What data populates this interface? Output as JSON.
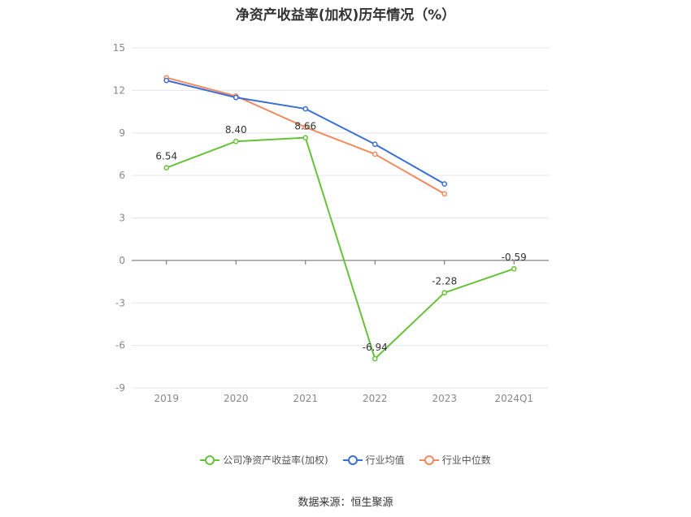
{
  "title": "净资产收益率(加权)历年情况（%）",
  "source": "数据来源：恒生聚源",
  "chart_data": {
    "type": "line",
    "title": "净资产收益率(加权)历年情况（%）",
    "categories": [
      "2019",
      "2020",
      "2021",
      "2022",
      "2023",
      "2024Q1"
    ],
    "ylim": [
      -9,
      15
    ],
    "yticks": [
      15,
      12,
      9,
      6,
      3,
      0,
      -3,
      -6,
      -9
    ],
    "grid": true,
    "legend_position": "bottom",
    "series": [
      {
        "name": "公司净资产收益率(加权)",
        "color": "#66c23a",
        "values": [
          6.54,
          8.4,
          8.66,
          -6.94,
          -2.28,
          -0.59
        ],
        "labels": [
          "6.54",
          "8.40",
          "8.66",
          "-6.94",
          "-2.28",
          "-0.59"
        ]
      },
      {
        "name": "行业均值",
        "color": "#3b6fd6",
        "values": [
          12.7,
          11.5,
          10.7,
          8.2,
          5.4,
          null
        ]
      },
      {
        "name": "行业中位数",
        "color": "#f08a5d",
        "values": [
          12.9,
          11.6,
          9.4,
          7.5,
          4.7,
          null
        ]
      }
    ]
  }
}
